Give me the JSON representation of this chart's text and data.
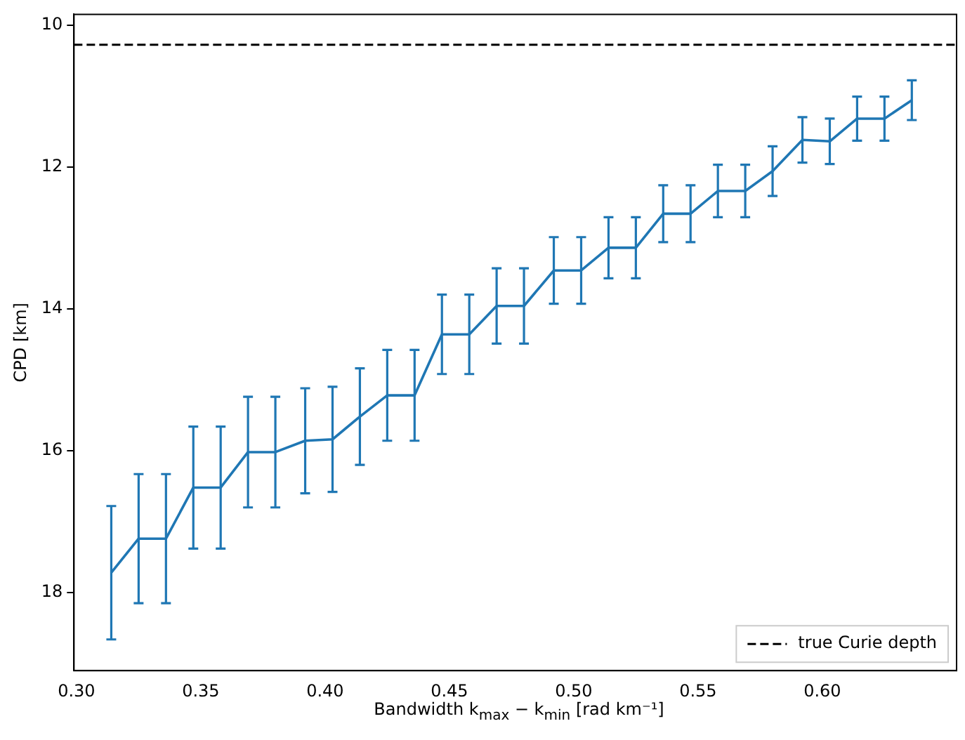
{
  "chart_data": {
    "type": "line",
    "xlabel": "Bandwidth k$_{max}$ − k$_{min}$ [rad km⁻¹]",
    "ylabel": "CPD [km]",
    "x": [
      0.314,
      0.325,
      0.336,
      0.347,
      0.358,
      0.369,
      0.38,
      0.392,
      0.403,
      0.414,
      0.425,
      0.436,
      0.447,
      0.458,
      0.469,
      0.48,
      0.492,
      0.503,
      0.514,
      0.525,
      0.536,
      0.547,
      0.558,
      0.569,
      0.58,
      0.592,
      0.603,
      0.614,
      0.625,
      0.636
    ],
    "series": [
      {
        "color": "#1f77b4",
        "values": [
          17.72,
          17.24,
          17.24,
          16.52,
          16.52,
          16.02,
          16.02,
          15.86,
          15.84,
          15.52,
          15.22,
          15.22,
          14.36,
          14.36,
          13.96,
          13.96,
          13.46,
          13.46,
          13.14,
          13.14,
          12.66,
          12.66,
          12.34,
          12.34,
          12.06,
          11.62,
          11.64,
          11.32,
          11.32,
          11.06
        ],
        "errors": [
          0.94,
          0.91,
          0.91,
          0.86,
          0.86,
          0.78,
          0.78,
          0.74,
          0.74,
          0.68,
          0.64,
          0.64,
          0.56,
          0.56,
          0.53,
          0.53,
          0.47,
          0.47,
          0.43,
          0.43,
          0.4,
          0.4,
          0.37,
          0.37,
          0.35,
          0.32,
          0.32,
          0.31,
          0.31,
          0.28
        ]
      }
    ],
    "xlim": [
      0.299,
      0.654
    ],
    "ylim": [
      19.1,
      9.85
    ],
    "xticks": [
      {
        "value": 0.3,
        "label": "0.30"
      },
      {
        "value": 0.35,
        "label": "0.35"
      },
      {
        "value": 0.4,
        "label": "0.40"
      },
      {
        "value": 0.45,
        "label": "0.45"
      },
      {
        "value": 0.5,
        "label": "0.50"
      },
      {
        "value": 0.55,
        "label": "0.55"
      },
      {
        "value": 0.6,
        "label": "0.60"
      }
    ],
    "yticks": [
      10,
      12,
      14,
      16,
      18
    ],
    "ref_lines": [
      {
        "axis": "y",
        "value": 10.28,
        "label": "true Curie depth",
        "color": "#000000",
        "line_style": "dashed"
      }
    ],
    "legend": "bottom right",
    "grid": false,
    "marker": "none",
    "line_style": "solid"
  }
}
